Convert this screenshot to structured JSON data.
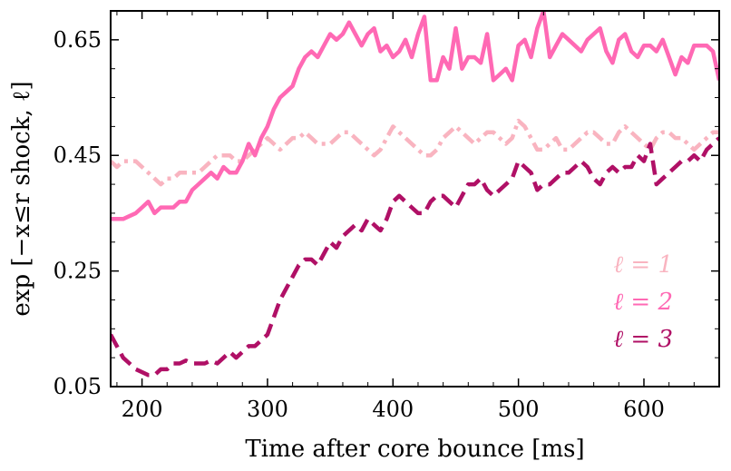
{
  "chart_data": {
    "type": "line",
    "title": "",
    "xlabel": "Time after core bounce [ms]",
    "ylabel": "exp [−x≤r shock, ℓ]",
    "xlim": [
      175,
      660
    ],
    "ylim": [
      0.05,
      0.7
    ],
    "xticks": [
      200,
      300,
      400,
      500,
      600
    ],
    "xtick_labels": [
      "200",
      "300",
      "400",
      "500",
      "600"
    ],
    "yticks": [
      0.05,
      0.25,
      0.45,
      0.65
    ],
    "ytick_labels": [
      "0.05",
      "0.25",
      "0.45",
      "0.65"
    ],
    "legend_position": "bottom-right",
    "series": [
      {
        "name": "ℓ = 1",
        "color": "#f9b4c0",
        "dash": "dashdot",
        "x": [
          175,
          180,
          185,
          190,
          195,
          200,
          205,
          210,
          215,
          220,
          225,
          230,
          235,
          240,
          245,
          250,
          255,
          260,
          265,
          270,
          275,
          280,
          285,
          290,
          295,
          300,
          305,
          310,
          315,
          320,
          325,
          330,
          335,
          340,
          345,
          350,
          355,
          360,
          365,
          370,
          375,
          380,
          385,
          390,
          395,
          400,
          405,
          410,
          415,
          420,
          425,
          430,
          435,
          440,
          445,
          450,
          455,
          460,
          465,
          470,
          475,
          480,
          485,
          490,
          495,
          500,
          505,
          510,
          515,
          520,
          525,
          530,
          535,
          540,
          545,
          550,
          555,
          560,
          565,
          570,
          575,
          580,
          585,
          590,
          595,
          600,
          605,
          610,
          615,
          620,
          625,
          630,
          635,
          640,
          645,
          650,
          655,
          660
        ],
        "values": [
          0.44,
          0.43,
          0.44,
          0.44,
          0.44,
          0.43,
          0.42,
          0.41,
          0.4,
          0.41,
          0.41,
          0.42,
          0.42,
          0.42,
          0.42,
          0.43,
          0.44,
          0.45,
          0.45,
          0.45,
          0.44,
          0.44,
          0.45,
          0.46,
          0.47,
          0.48,
          0.47,
          0.46,
          0.47,
          0.48,
          0.48,
          0.49,
          0.48,
          0.47,
          0.47,
          0.47,
          0.48,
          0.49,
          0.49,
          0.48,
          0.47,
          0.46,
          0.45,
          0.46,
          0.48,
          0.5,
          0.49,
          0.48,
          0.47,
          0.46,
          0.45,
          0.45,
          0.46,
          0.48,
          0.49,
          0.5,
          0.49,
          0.48,
          0.47,
          0.48,
          0.49,
          0.49,
          0.48,
          0.47,
          0.48,
          0.51,
          0.5,
          0.48,
          0.46,
          0.46,
          0.47,
          0.48,
          0.46,
          0.46,
          0.47,
          0.48,
          0.49,
          0.49,
          0.48,
          0.47,
          0.47,
          0.49,
          0.5,
          0.49,
          0.48,
          0.47,
          0.46,
          0.48,
          0.49,
          0.49,
          0.48,
          0.48,
          0.47,
          0.46,
          0.47,
          0.48,
          0.49,
          0.49
        ]
      },
      {
        "name": "ℓ = 2",
        "color": "#ff69b4",
        "dash": "solid",
        "x": [
          175,
          180,
          185,
          190,
          195,
          200,
          205,
          210,
          215,
          220,
          225,
          230,
          235,
          240,
          245,
          250,
          255,
          260,
          265,
          270,
          275,
          280,
          285,
          290,
          295,
          300,
          305,
          310,
          315,
          320,
          325,
          330,
          335,
          340,
          345,
          350,
          355,
          360,
          365,
          370,
          375,
          380,
          385,
          390,
          395,
          400,
          405,
          410,
          415,
          420,
          425,
          430,
          435,
          440,
          445,
          450,
          455,
          460,
          465,
          470,
          475,
          480,
          485,
          490,
          495,
          500,
          505,
          510,
          515,
          520,
          525,
          530,
          535,
          540,
          545,
          550,
          555,
          560,
          565,
          570,
          575,
          580,
          585,
          590,
          595,
          600,
          605,
          610,
          615,
          620,
          625,
          630,
          635,
          640,
          645,
          650,
          655,
          660
        ],
        "values": [
          0.34,
          0.34,
          0.34,
          0.345,
          0.35,
          0.36,
          0.37,
          0.35,
          0.36,
          0.36,
          0.36,
          0.37,
          0.37,
          0.39,
          0.4,
          0.41,
          0.42,
          0.41,
          0.43,
          0.42,
          0.42,
          0.44,
          0.47,
          0.45,
          0.48,
          0.5,
          0.53,
          0.55,
          0.56,
          0.57,
          0.6,
          0.62,
          0.63,
          0.62,
          0.64,
          0.66,
          0.65,
          0.66,
          0.68,
          0.66,
          0.64,
          0.66,
          0.67,
          0.63,
          0.64,
          0.62,
          0.63,
          0.65,
          0.62,
          0.66,
          0.69,
          0.58,
          0.58,
          0.62,
          0.6,
          0.67,
          0.6,
          0.62,
          0.62,
          0.61,
          0.66,
          0.58,
          0.59,
          0.6,
          0.58,
          0.64,
          0.65,
          0.62,
          0.67,
          0.7,
          0.62,
          0.64,
          0.66,
          0.65,
          0.64,
          0.63,
          0.65,
          0.66,
          0.67,
          0.63,
          0.61,
          0.65,
          0.66,
          0.63,
          0.62,
          0.64,
          0.64,
          0.63,
          0.65,
          0.62,
          0.59,
          0.62,
          0.61,
          0.64,
          0.64,
          0.64,
          0.63,
          0.58
        ]
      },
      {
        "name": "ℓ = 3",
        "color": "#b01066",
        "dash": "dashed",
        "x": [
          175,
          180,
          185,
          190,
          195,
          200,
          205,
          210,
          215,
          220,
          225,
          230,
          235,
          240,
          245,
          250,
          255,
          260,
          265,
          270,
          275,
          280,
          285,
          290,
          295,
          300,
          305,
          310,
          315,
          320,
          325,
          330,
          335,
          340,
          345,
          350,
          355,
          360,
          365,
          370,
          375,
          380,
          385,
          390,
          395,
          400,
          405,
          410,
          415,
          420,
          425,
          430,
          435,
          440,
          445,
          450,
          455,
          460,
          465,
          470,
          475,
          480,
          485,
          490,
          495,
          500,
          505,
          510,
          515,
          520,
          525,
          530,
          535,
          540,
          545,
          550,
          555,
          560,
          565,
          570,
          575,
          580,
          585,
          590,
          595,
          600,
          605,
          610,
          615,
          620,
          625,
          630,
          635,
          640,
          645,
          650,
          655,
          660
        ],
        "values": [
          0.14,
          0.12,
          0.1,
          0.09,
          0.08,
          0.075,
          0.07,
          0.07,
          0.08,
          0.08,
          0.09,
          0.09,
          0.095,
          0.09,
          0.09,
          0.09,
          0.095,
          0.09,
          0.1,
          0.11,
          0.1,
          0.11,
          0.12,
          0.12,
          0.13,
          0.14,
          0.17,
          0.2,
          0.22,
          0.24,
          0.26,
          0.27,
          0.27,
          0.26,
          0.28,
          0.3,
          0.29,
          0.31,
          0.32,
          0.33,
          0.32,
          0.34,
          0.33,
          0.32,
          0.34,
          0.37,
          0.38,
          0.37,
          0.36,
          0.35,
          0.35,
          0.37,
          0.38,
          0.38,
          0.37,
          0.36,
          0.38,
          0.4,
          0.4,
          0.41,
          0.39,
          0.38,
          0.39,
          0.4,
          0.41,
          0.44,
          0.43,
          0.42,
          0.39,
          0.4,
          0.4,
          0.41,
          0.42,
          0.42,
          0.43,
          0.44,
          0.43,
          0.41,
          0.4,
          0.42,
          0.43,
          0.42,
          0.43,
          0.43,
          0.45,
          0.44,
          0.47,
          0.4,
          0.41,
          0.42,
          0.43,
          0.44,
          0.44,
          0.45,
          0.44,
          0.46,
          0.47,
          0.48
        ]
      }
    ]
  }
}
